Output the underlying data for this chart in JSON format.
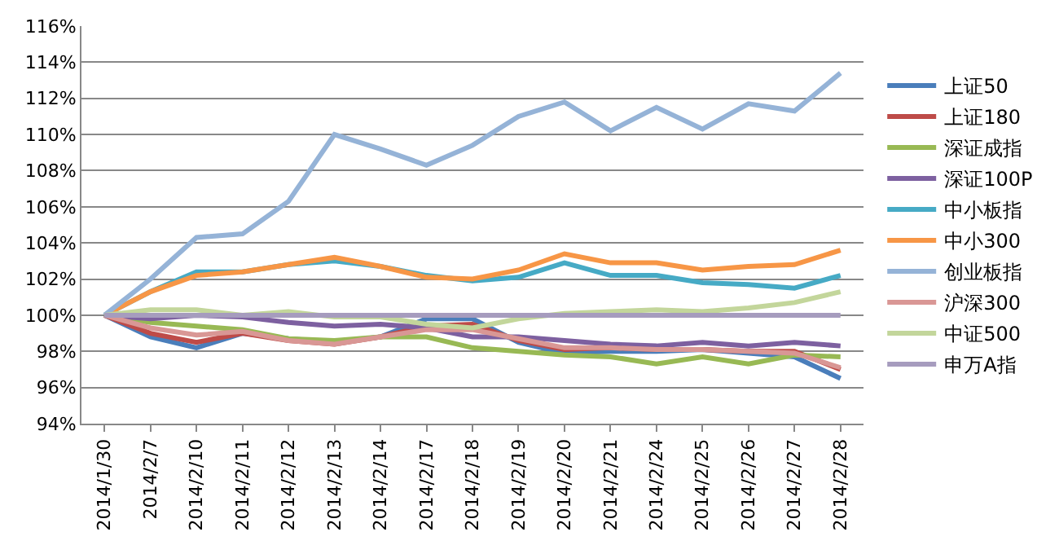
{
  "chart_data": {
    "type": "line",
    "categories": [
      "2014/1/30",
      "2014/2/7",
      "2014/2/10",
      "2014/2/11",
      "2014/2/12",
      "2014/2/13",
      "2014/2/14",
      "2014/2/17",
      "2014/2/18",
      "2014/2/19",
      "2014/2/20",
      "2014/2/21",
      "2014/2/24",
      "2014/2/25",
      "2014/2/26",
      "2014/2/27",
      "2014/2/28"
    ],
    "series": [
      {
        "name": "上证50",
        "color": "#4a7ebb",
        "values": [
          100,
          98.8,
          98.2,
          99,
          98.7,
          98.5,
          98.8,
          99.8,
          99.8,
          98.5,
          97.9,
          98,
          98,
          98.1,
          97.9,
          97.7,
          96.5
        ]
      },
      {
        "name": "上证180",
        "color": "#be4b48",
        "values": [
          100,
          99,
          98.5,
          99,
          98.6,
          98.4,
          98.8,
          99.4,
          99.5,
          98.6,
          98.1,
          98.2,
          98.1,
          98.1,
          98,
          98,
          97
        ]
      },
      {
        "name": "深证成指",
        "color": "#98b954",
        "values": [
          100,
          99.6,
          99.4,
          99.2,
          98.7,
          98.6,
          98.8,
          98.8,
          98.2,
          98,
          97.8,
          97.7,
          97.3,
          97.7,
          97.3,
          97.8,
          97.7
        ]
      },
      {
        "name": "深证100P",
        "color": "#7d60a0",
        "values": [
          100,
          99.8,
          100,
          99.9,
          99.6,
          99.4,
          99.5,
          99.3,
          98.8,
          98.8,
          98.6,
          98.4,
          98.3,
          98.5,
          98.3,
          98.5,
          98.3
        ]
      },
      {
        "name": "中小板指",
        "color": "#46aac5",
        "values": [
          100,
          101.3,
          102.4,
          102.4,
          102.8,
          103,
          102.7,
          102.2,
          101.9,
          102.1,
          102.9,
          102.2,
          102.2,
          101.8,
          101.7,
          101.5,
          102.2
        ]
      },
      {
        "name": "中小300",
        "color": "#f79646",
        "values": [
          100,
          101.3,
          102.2,
          102.4,
          102.8,
          103.2,
          102.7,
          102.1,
          102,
          102.5,
          103.4,
          102.9,
          102.9,
          102.5,
          102.7,
          102.8,
          103.6
        ]
      },
      {
        "name": "创业板指",
        "color": "#95b3d7",
        "values": [
          100,
          102,
          104.3,
          104.5,
          106.3,
          110,
          109.2,
          108.3,
          109.4,
          111,
          111.8,
          110.2,
          111.5,
          110.3,
          111.7,
          111.3,
          113.4
        ]
      },
      {
        "name": "沪深300",
        "color": "#d99795",
        "values": [
          100,
          99.3,
          98.9,
          99.1,
          98.6,
          98.4,
          98.8,
          99.2,
          99.2,
          98.7,
          98.2,
          98.2,
          98.1,
          98.1,
          98,
          97.9,
          97.1
        ]
      },
      {
        "name": "中证500",
        "color": "#c3d69b",
        "values": [
          100,
          100.3,
          100.3,
          100,
          100.2,
          99.9,
          99.9,
          99.5,
          99.3,
          99.8,
          100.1,
          100.2,
          100.3,
          100.2,
          100.4,
          100.7,
          101.3
        ]
      },
      {
        "name": "申万A指",
        "color": "#a69cbe",
        "values": [
          100,
          100,
          100,
          100,
          100,
          100,
          100,
          100,
          100,
          100,
          100,
          100,
          100,
          100,
          100,
          100,
          100
        ]
      }
    ],
    "ylim": [
      94,
      116
    ],
    "yticks": [
      {
        "value": 94,
        "label": "94%"
      },
      {
        "value": 96,
        "label": "96%"
      },
      {
        "value": 98,
        "label": "98%"
      },
      {
        "value": 100,
        "label": "100%"
      },
      {
        "value": 102,
        "label": "102%"
      },
      {
        "value": 104,
        "label": "104%"
      },
      {
        "value": 106,
        "label": "106%"
      },
      {
        "value": 108,
        "label": "108%"
      },
      {
        "value": 110,
        "label": "110%"
      },
      {
        "value": 112,
        "label": "112%"
      },
      {
        "value": 114,
        "label": "114%"
      },
      {
        "value": 116,
        "label": "116%"
      }
    ],
    "grid": "y",
    "legend": "right",
    "marker": "none",
    "line_style": "solid"
  }
}
